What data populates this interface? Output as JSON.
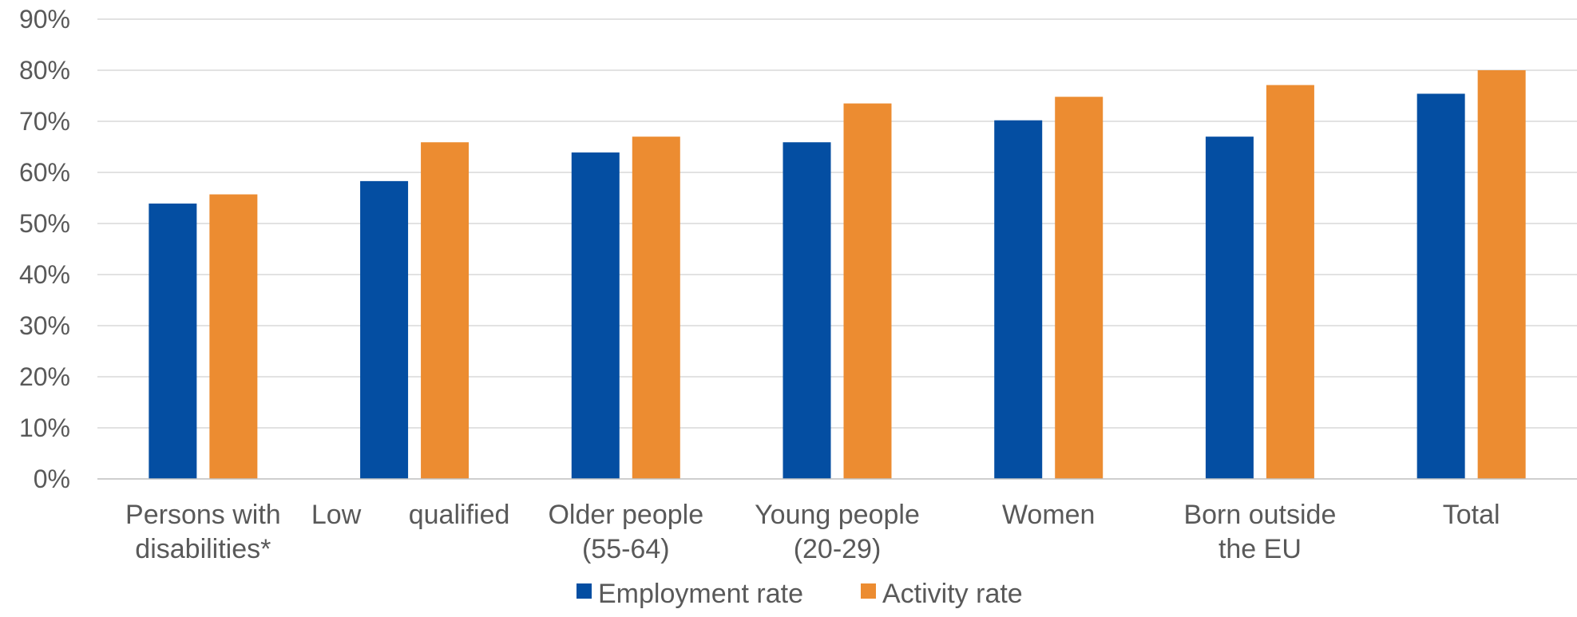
{
  "chart_data": {
    "type": "bar",
    "categories": [
      [
        "Persons with",
        "disabilities*"
      ],
      [
        "Low",
        "qualified"
      ],
      [
        "Older people",
        "(55-64)"
      ],
      [
        "Young people",
        "(20-29)"
      ],
      [
        "Women"
      ],
      [
        "Born outside",
        "the EU"
      ],
      [
        "Total"
      ]
    ],
    "series": [
      {
        "name": "Employment rate",
        "color": "#044ea2",
        "values": [
          53.9,
          58.3,
          63.9,
          65.9,
          70.2,
          67.0,
          75.4
        ]
      },
      {
        "name": "Activity rate",
        "color": "#ec8c31",
        "values": [
          55.7,
          65.9,
          67.0,
          73.5,
          74.8,
          77.1,
          80.0
        ]
      }
    ],
    "y_ticks": [
      "0%",
      "10%",
      "20%",
      "30%",
      "40%",
      "50%",
      "60%",
      "70%",
      "80%",
      "90%"
    ],
    "ylim": [
      0,
      90
    ],
    "grid": true,
    "legend_position": "bottom"
  }
}
